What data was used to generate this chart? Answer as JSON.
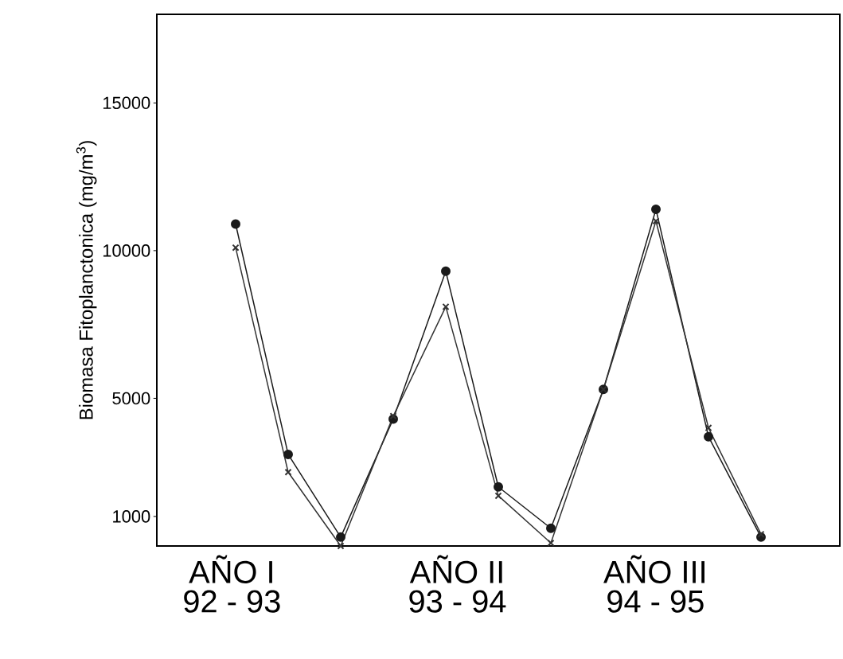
{
  "chart_data": {
    "type": "line",
    "ylabel": "Biomasa Fitoplanctonica (mg/m$^{3}$)",
    "categories": [
      null,
      null,
      null,
      null,
      null,
      null,
      null,
      null,
      null,
      null,
      null
    ],
    "series": [
      {
        "color": "#1a1a1a",
        "marker": "circle",
        "values": [
          10900,
          3100,
          300,
          4300,
          9300,
          2000,
          600,
          5300,
          11400,
          3700,
          300
        ]
      },
      {
        "color": "#333333",
        "marker": "cross",
        "values": [
          10100,
          2500,
          0,
          4400,
          8100,
          1700,
          100,
          5300,
          11000,
          4000,
          400
        ]
      }
    ],
    "annotations": [
      "AÑO I",
      "92 - 93",
      "AÑO II",
      "93 - 94",
      "AÑO III",
      "94 - 95"
    ],
    "ylim": [
      0,
      18000
    ],
    "yticks": [
      1000,
      5000,
      10000,
      15000
    ],
    "line_style": "solid"
  }
}
